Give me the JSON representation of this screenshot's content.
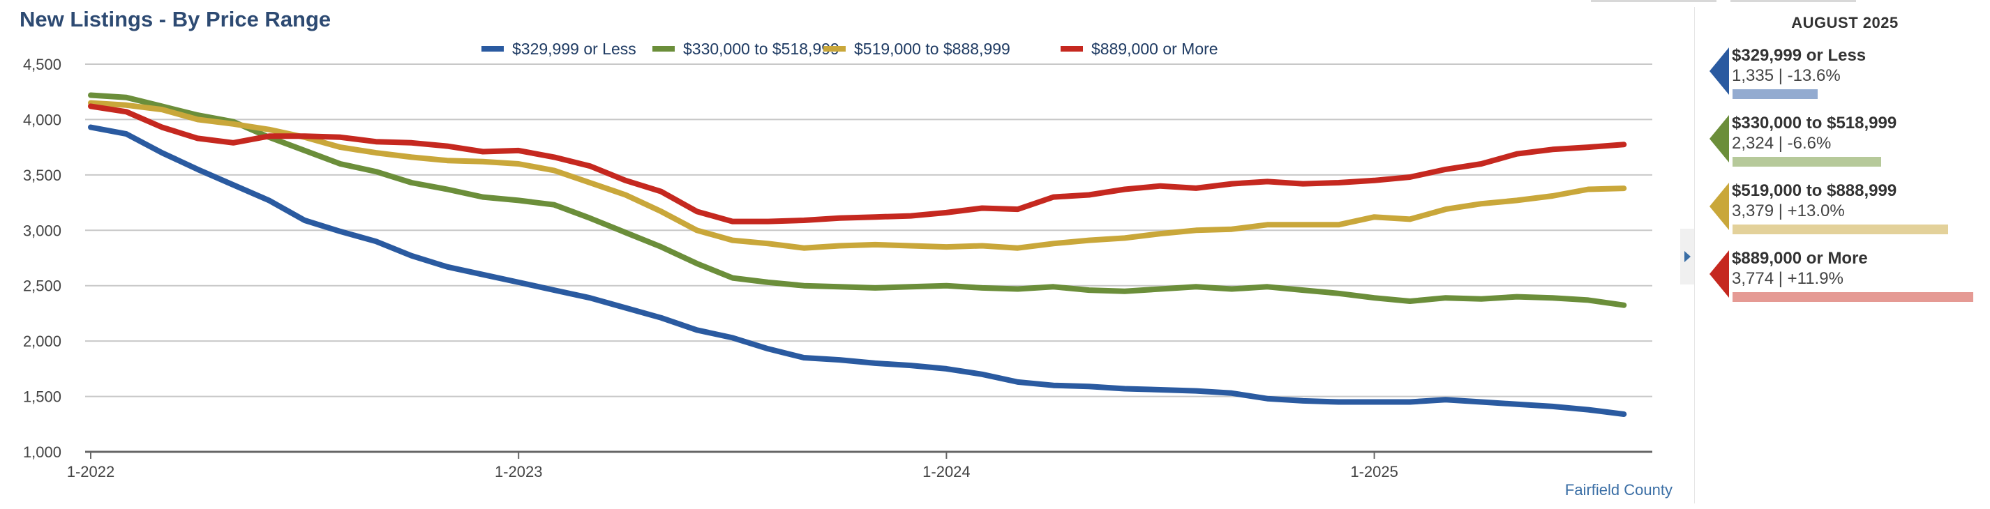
{
  "title": "New Listings - By Price Range",
  "footer": "Fairfield County",
  "chart_data": {
    "type": "line",
    "x_labels": [
      "1-2022",
      "1-2023",
      "1-2024",
      "1-2025"
    ],
    "x": [
      "2022-01",
      "2022-02",
      "2022-03",
      "2022-04",
      "2022-05",
      "2022-06",
      "2022-07",
      "2022-08",
      "2022-09",
      "2022-10",
      "2022-11",
      "2022-12",
      "2023-01",
      "2023-02",
      "2023-03",
      "2023-04",
      "2023-05",
      "2023-06",
      "2023-07",
      "2023-08",
      "2023-09",
      "2023-10",
      "2023-11",
      "2023-12",
      "2024-01",
      "2024-02",
      "2024-03",
      "2024-04",
      "2024-05",
      "2024-06",
      "2024-07",
      "2024-08",
      "2024-09",
      "2024-10",
      "2024-11",
      "2024-12",
      "2025-01",
      "2025-02",
      "2025-03",
      "2025-04",
      "2025-05",
      "2025-06",
      "2025-07",
      "2025-08"
    ],
    "ylim": [
      1000,
      4500
    ],
    "y_ticks": [
      "1,000",
      "1,500",
      "2,000",
      "2,500",
      "3,000",
      "3,500",
      "4,000",
      "4,500"
    ],
    "grid": true,
    "legend_position": "top",
    "series": [
      {
        "name": "$329,999 or Less",
        "color": "#2a5aa0",
        "values": [
          3930,
          3870,
          3700,
          3550,
          3410,
          3270,
          3090,
          2990,
          2900,
          2770,
          2670,
          2600,
          2530,
          2460,
          2390,
          2300,
          2210,
          2100,
          2030,
          1930,
          1850,
          1830,
          1800,
          1780,
          1750,
          1700,
          1630,
          1600,
          1590,
          1570,
          1560,
          1550,
          1530,
          1480,
          1460,
          1450,
          1450,
          1450,
          1470,
          1450,
          1430,
          1410,
          1380,
          1340
        ]
      },
      {
        "name": "$330,000 to $518,999",
        "color": "#6b8e3a",
        "values": [
          4220,
          4200,
          4120,
          4040,
          3980,
          3840,
          3720,
          3600,
          3530,
          3430,
          3370,
          3300,
          3270,
          3230,
          3110,
          2980,
          2850,
          2700,
          2570,
          2530,
          2500,
          2490,
          2480,
          2490,
          2500,
          2480,
          2470,
          2490,
          2460,
          2450,
          2470,
          2490,
          2470,
          2490,
          2460,
          2430,
          2390,
          2360,
          2390,
          2380,
          2400,
          2390,
          2370,
          2324
        ]
      },
      {
        "name": "$519,000 to $888,999",
        "color": "#c9a73a",
        "values": [
          4150,
          4130,
          4090,
          4000,
          3960,
          3910,
          3840,
          3750,
          3700,
          3660,
          3630,
          3620,
          3600,
          3540,
          3430,
          3320,
          3170,
          3000,
          2910,
          2880,
          2840,
          2860,
          2870,
          2860,
          2850,
          2860,
          2840,
          2880,
          2910,
          2930,
          2970,
          3000,
          3010,
          3050,
          3050,
          3050,
          3120,
          3100,
          3190,
          3240,
          3270,
          3310,
          3370,
          3379
        ]
      },
      {
        "name": "$889,000 or More",
        "color": "#c5281f",
        "values": [
          4120,
          4070,
          3930,
          3830,
          3790,
          3850,
          3850,
          3840,
          3800,
          3790,
          3760,
          3710,
          3720,
          3660,
          3580,
          3450,
          3350,
          3170,
          3080,
          3080,
          3090,
          3110,
          3120,
          3130,
          3160,
          3200,
          3190,
          3300,
          3320,
          3370,
          3400,
          3380,
          3420,
          3440,
          3420,
          3430,
          3450,
          3480,
          3550,
          3600,
          3690,
          3730,
          3750,
          3774
        ]
      }
    ]
  },
  "side_panel": {
    "heading": "AUGUST 2025",
    "items": [
      {
        "label": "$329,999 or Less",
        "value": "1,335",
        "change": "-13.6%",
        "stat": "1,335 | -13.6%",
        "marker_color": "#2a5aa0",
        "bar_color": "#93abd0",
        "bar_fraction": 0.354
      },
      {
        "label": "$330,000 to $518,999",
        "value": "2,324",
        "change": "-6.6%",
        "stat": "2,324 | -6.6%",
        "marker_color": "#6b8e3a",
        "bar_color": "#b6c99a",
        "bar_fraction": 0.616
      },
      {
        "label": "$519,000 to $888,999",
        "value": "3,379",
        "change": "+13.0%",
        "stat": "3,379 | +13.0%",
        "marker_color": "#c9a73a",
        "bar_color": "#e3d19a",
        "bar_fraction": 0.895
      },
      {
        "label": "$889,000 or More",
        "value": "3,774",
        "change": "+11.9%",
        "stat": "3,774 | +11.9%",
        "marker_color": "#c5281f",
        "bar_color": "#e59a94",
        "bar_fraction": 1.0
      }
    ]
  }
}
